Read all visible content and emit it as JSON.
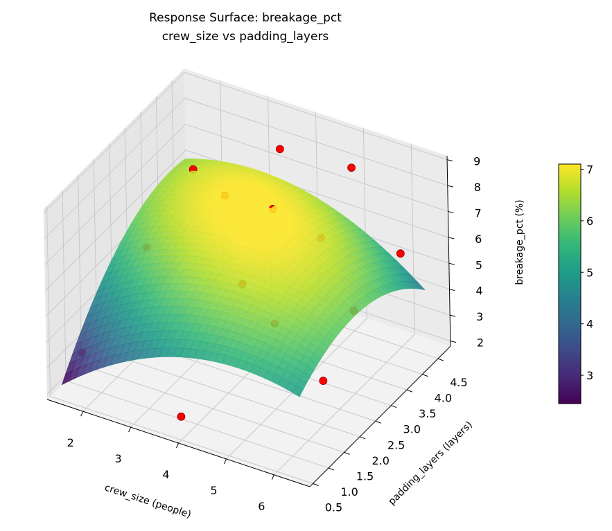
{
  "chart_data": {
    "type": "surface3d",
    "title": "Response Surface: breakage_pct",
    "subtitle": "crew_size vs padding_layers",
    "xlabel": "crew_size (people)",
    "ylabel": "padding_layers (layers)",
    "zlabel": "breakage_pct (%)",
    "xlim": [
      1.25,
      6.75
    ],
    "ylim": [
      0.4,
      4.9
    ],
    "zlim": [
      1.8,
      9.15
    ],
    "xticks": [
      2,
      3,
      4,
      5,
      6
    ],
    "yticks": [
      "0.5",
      "1.0",
      "1.5",
      "2.0",
      "2.5",
      "3.0",
      "3.5",
      "4.0",
      "4.5"
    ],
    "zticks": [
      2,
      3,
      4,
      5,
      6,
      7,
      8,
      9
    ],
    "surface": {
      "x_range": [
        1.5,
        6.5
      ],
      "y_range": [
        0.5,
        4.5
      ],
      "corner_values": {
        "x_min_y_min": 2.4,
        "x_max_y_min": 5.0,
        "x_min_y_max": 6.3,
        "x_max_y_max": 4.3
      },
      "peak_value": 7.1,
      "colormap": "viridis"
    },
    "observed_points": [
      {
        "crew_size": 1.6,
        "padding_layers": 1.0,
        "breakage_pct": 3.1
      },
      {
        "crew_size": 2.0,
        "padding_layers": 2.5,
        "breakage_pct": 5.6
      },
      {
        "crew_size": 2.0,
        "padding_layers": 4.0,
        "breakage_pct": 6.8
      },
      {
        "crew_size": 3.0,
        "padding_layers": 3.5,
        "breakage_pct": 7.0
      },
      {
        "crew_size": 4.0,
        "padding_layers": 0.5,
        "breakage_pct": 2.7
      },
      {
        "crew_size": 4.0,
        "padding_layers": 2.5,
        "breakage_pct": 5.4
      },
      {
        "crew_size": 4.0,
        "padding_layers": 3.5,
        "breakage_pct": 7.1
      },
      {
        "crew_size": 3.5,
        "padding_layers": 4.5,
        "breakage_pct": 7.9
      },
      {
        "crew_size": 5.0,
        "padding_layers": 2.0,
        "breakage_pct": 5.1
      },
      {
        "crew_size": 5.0,
        "padding_layers": 3.5,
        "breakage_pct": 6.6
      },
      {
        "crew_size": 5.0,
        "padding_layers": 4.5,
        "breakage_pct": 8.1
      },
      {
        "crew_size": 6.0,
        "padding_layers": 2.0,
        "breakage_pct": 3.5
      },
      {
        "crew_size": 6.0,
        "padding_layers": 3.0,
        "breakage_pct": 5.0
      },
      {
        "crew_size": 6.0,
        "padding_layers": 4.5,
        "breakage_pct": 5.4
      }
    ],
    "point_color": "#ff0000",
    "pane_color": "#f2f2f2",
    "grid": true,
    "colorbar": {
      "label": "breakage_pct (%)",
      "range": [
        2.45,
        7.1
      ],
      "ticks": [
        3,
        4,
        5,
        6,
        7
      ],
      "placement": "right"
    }
  }
}
